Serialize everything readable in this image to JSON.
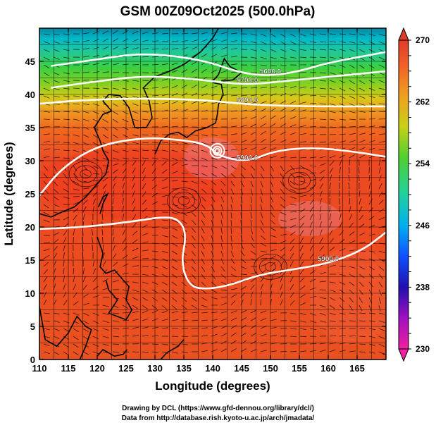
{
  "title": "GSM 00Z09Oct2025 (500.0hPa)",
  "axes": {
    "xlabel": "Longitude (degrees)",
    "ylabel": "Latitude  (degrees)",
    "xlim": [
      110,
      170
    ],
    "ylim": [
      0,
      50
    ],
    "xticks": [
      110,
      115,
      120,
      125,
      130,
      135,
      140,
      145,
      150,
      155,
      160,
      165
    ],
    "yticks": [
      0,
      5,
      10,
      15,
      20,
      25,
      30,
      35,
      40,
      45
    ]
  },
  "colorbar": {
    "min": 230,
    "max": 270,
    "labels": [
      270,
      262,
      254,
      246,
      238,
      230
    ],
    "colors": [
      "#e0007a",
      "#c000c0",
      "#3020d0",
      "#0060ff",
      "#00d0e0",
      "#20d060",
      "#60d020",
      "#b8d010",
      "#f09020",
      "#f05020",
      "#e83820"
    ]
  },
  "contours": [
    {
      "label": "5600.0",
      "points": [
        [
          112,
          44.3
        ],
        [
          120,
          45.3
        ],
        [
          128,
          46.3
        ],
        [
          138,
          45.3
        ],
        [
          145,
          43.2
        ],
        [
          150,
          42.8
        ],
        [
          155,
          43.5
        ],
        [
          160,
          44.8
        ],
        [
          170,
          46.4
        ]
      ]
    },
    {
      "label": "5700.0",
      "points": [
        [
          112,
          41
        ],
        [
          120,
          42
        ],
        [
          128,
          42.8
        ],
        [
          136,
          42.4
        ],
        [
          142,
          41.8
        ],
        [
          146,
          41.5
        ],
        [
          150,
          41.8
        ],
        [
          158,
          42.5
        ],
        [
          170,
          43.5
        ]
      ]
    },
    {
      "label": "5800.0",
      "points": [
        [
          110,
          38.6
        ],
        [
          118,
          39.2
        ],
        [
          128,
          39.4
        ],
        [
          138,
          39.2
        ],
        [
          146,
          38.5
        ],
        [
          155,
          38.2
        ],
        [
          170,
          38.2
        ]
      ]
    },
    {
      "label": "5900.0",
      "points": [
        [
          110,
          24.8
        ],
        [
          114,
          29
        ],
        [
          120,
          32.3
        ],
        [
          128,
          33.5
        ],
        [
          134,
          33.2
        ],
        [
          139,
          32.5
        ],
        [
          141,
          30.7
        ],
        [
          146,
          29.8
        ],
        [
          151,
          31.6
        ],
        [
          158,
          32
        ],
        [
          165,
          31.3
        ],
        [
          170,
          30.6
        ]
      ]
    },
    {
      "label": "5900.0",
      "points": [
        [
          110,
          19.7
        ],
        [
          118,
          20
        ],
        [
          126,
          20.8
        ],
        [
          131,
          21.5
        ],
        [
          134,
          21.3
        ],
        [
          135.5,
          19
        ],
        [
          134.5,
          14.5
        ],
        [
          136,
          11
        ],
        [
          139,
          10.6
        ],
        [
          143,
          11.2
        ],
        [
          148,
          12.8
        ],
        [
          154,
          13.6
        ],
        [
          160,
          14.5
        ],
        [
          166,
          16.5
        ],
        [
          170,
          19.2
        ]
      ]
    }
  ],
  "cyclone_center": {
    "lon": 140.8,
    "lat": 31.5
  },
  "credits": {
    "line1": "Drawing by DCL (https://www.gfd-dennou.org/library/dcl/)",
    "line2": "Data from http://database.rish.kyoto-u.ac.jp/arch/jmadata/"
  }
}
